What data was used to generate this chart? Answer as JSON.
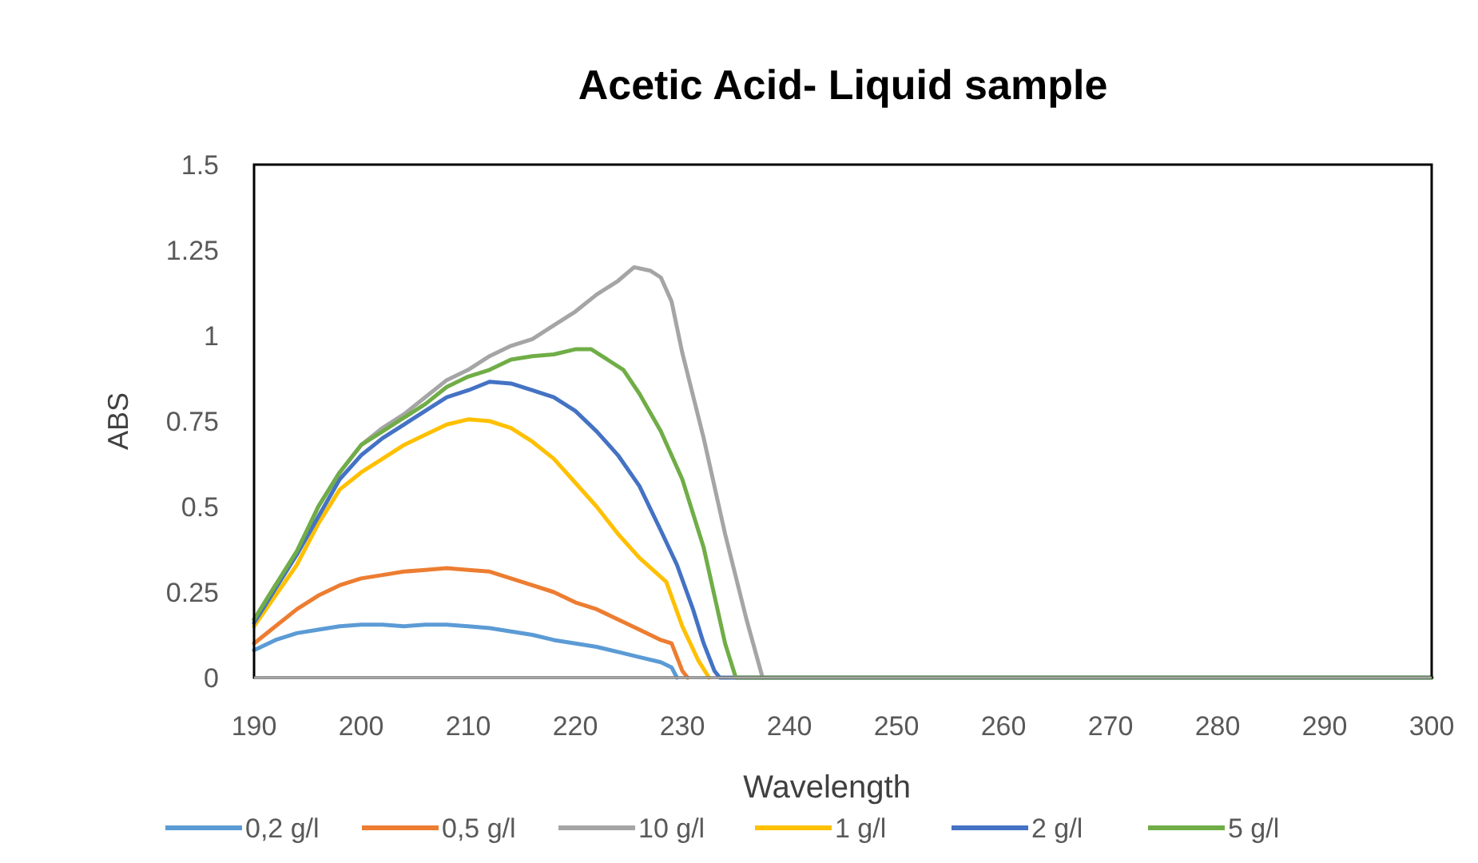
{
  "chart_data": {
    "type": "line",
    "title": "Acetic Acid- Liquid sample",
    "xlabel": "Wavelength",
    "ylabel": "ABS",
    "xlim": [
      190,
      300
    ],
    "xticks": [
      190,
      200,
      210,
      220,
      230,
      240,
      250,
      260,
      270,
      280,
      290,
      300
    ],
    "ylim": [
      0,
      1.5
    ],
    "yticks": [
      0,
      0.25,
      0.5,
      0.75,
      1,
      1.25,
      1.5
    ],
    "grid": false,
    "legend": "bottom",
    "marker": "none",
    "line_style": "solid",
    "series": [
      {
        "name": "0,2 g/l",
        "color": "#5b9bd5",
        "x": [
          190,
          192,
          194,
          196,
          198,
          200,
          202,
          204,
          206,
          208,
          210,
          212,
          214,
          216,
          218,
          220,
          222,
          224,
          226,
          228,
          229,
          229.5
        ],
        "values": [
          0.08,
          0.11,
          0.13,
          0.14,
          0.15,
          0.155,
          0.155,
          0.15,
          0.155,
          0.155,
          0.15,
          0.145,
          0.135,
          0.125,
          0.11,
          0.1,
          0.09,
          0.075,
          0.06,
          0.045,
          0.03,
          0
        ]
      },
      {
        "name": "0,5 g/l",
        "color": "#ed7d31",
        "x": [
          190,
          192,
          194,
          196,
          198,
          200,
          202,
          204,
          206,
          208,
          210,
          212,
          214,
          216,
          218,
          220,
          222,
          224,
          226,
          228,
          229,
          230,
          230.5
        ],
        "values": [
          0.1,
          0.15,
          0.2,
          0.24,
          0.27,
          0.29,
          0.3,
          0.31,
          0.315,
          0.32,
          0.315,
          0.31,
          0.29,
          0.27,
          0.25,
          0.22,
          0.2,
          0.17,
          0.14,
          0.11,
          0.1,
          0.02,
          0
        ]
      },
      {
        "name": "10 g/l",
        "color": "#a5a5a5",
        "x": [
          190,
          192,
          194,
          196,
          198,
          200,
          202,
          204,
          206,
          208,
          210,
          212,
          214,
          216,
          218,
          220,
          222,
          224,
          225.5,
          227,
          228,
          229,
          230,
          232,
          234,
          236,
          237.5
        ],
        "values": [
          0.17,
          0.27,
          0.36,
          0.5,
          0.6,
          0.68,
          0.73,
          0.77,
          0.82,
          0.87,
          0.9,
          0.94,
          0.97,
          0.99,
          1.03,
          1.07,
          1.12,
          1.16,
          1.2,
          1.19,
          1.17,
          1.1,
          0.95,
          0.7,
          0.42,
          0.17,
          0
        ]
      },
      {
        "name": "1 g/l",
        "color": "#ffc000",
        "x": [
          190,
          192,
          194,
          196,
          198,
          200,
          202,
          204,
          206,
          208,
          210,
          212,
          214,
          216,
          218,
          220,
          222,
          224,
          226,
          228.5,
          230,
          231.5,
          232.5
        ],
        "values": [
          0.15,
          0.24,
          0.33,
          0.45,
          0.55,
          0.6,
          0.64,
          0.68,
          0.71,
          0.74,
          0.755,
          0.75,
          0.73,
          0.69,
          0.64,
          0.57,
          0.5,
          0.42,
          0.35,
          0.28,
          0.15,
          0.05,
          0
        ]
      },
      {
        "name": "2 g/l",
        "color": "#4472c4",
        "x": [
          190,
          192,
          194,
          196,
          198,
          200,
          202,
          204,
          206,
          208,
          210,
          212,
          214,
          216,
          218,
          220,
          222,
          224,
          226,
          228,
          229.5,
          231,
          232,
          233,
          233.5,
          300
        ],
        "values": [
          0.16,
          0.26,
          0.36,
          0.47,
          0.58,
          0.65,
          0.7,
          0.74,
          0.78,
          0.82,
          0.84,
          0.865,
          0.86,
          0.84,
          0.82,
          0.78,
          0.72,
          0.65,
          0.56,
          0.43,
          0.33,
          0.2,
          0.1,
          0.02,
          0,
          0
        ]
      },
      {
        "name": "5 g/l",
        "color": "#70ad47",
        "x": [
          190,
          192,
          194,
          196,
          198,
          200,
          202,
          204,
          206,
          208,
          210,
          212,
          214,
          216,
          218,
          220,
          221.5,
          223,
          224.5,
          226,
          228,
          230,
          232,
          233,
          234,
          235,
          300
        ],
        "values": [
          0.17,
          0.27,
          0.37,
          0.5,
          0.6,
          0.68,
          0.72,
          0.76,
          0.8,
          0.85,
          0.88,
          0.9,
          0.93,
          0.94,
          0.945,
          0.96,
          0.96,
          0.93,
          0.9,
          0.83,
          0.72,
          0.58,
          0.38,
          0.24,
          0.1,
          0,
          0
        ]
      }
    ]
  }
}
